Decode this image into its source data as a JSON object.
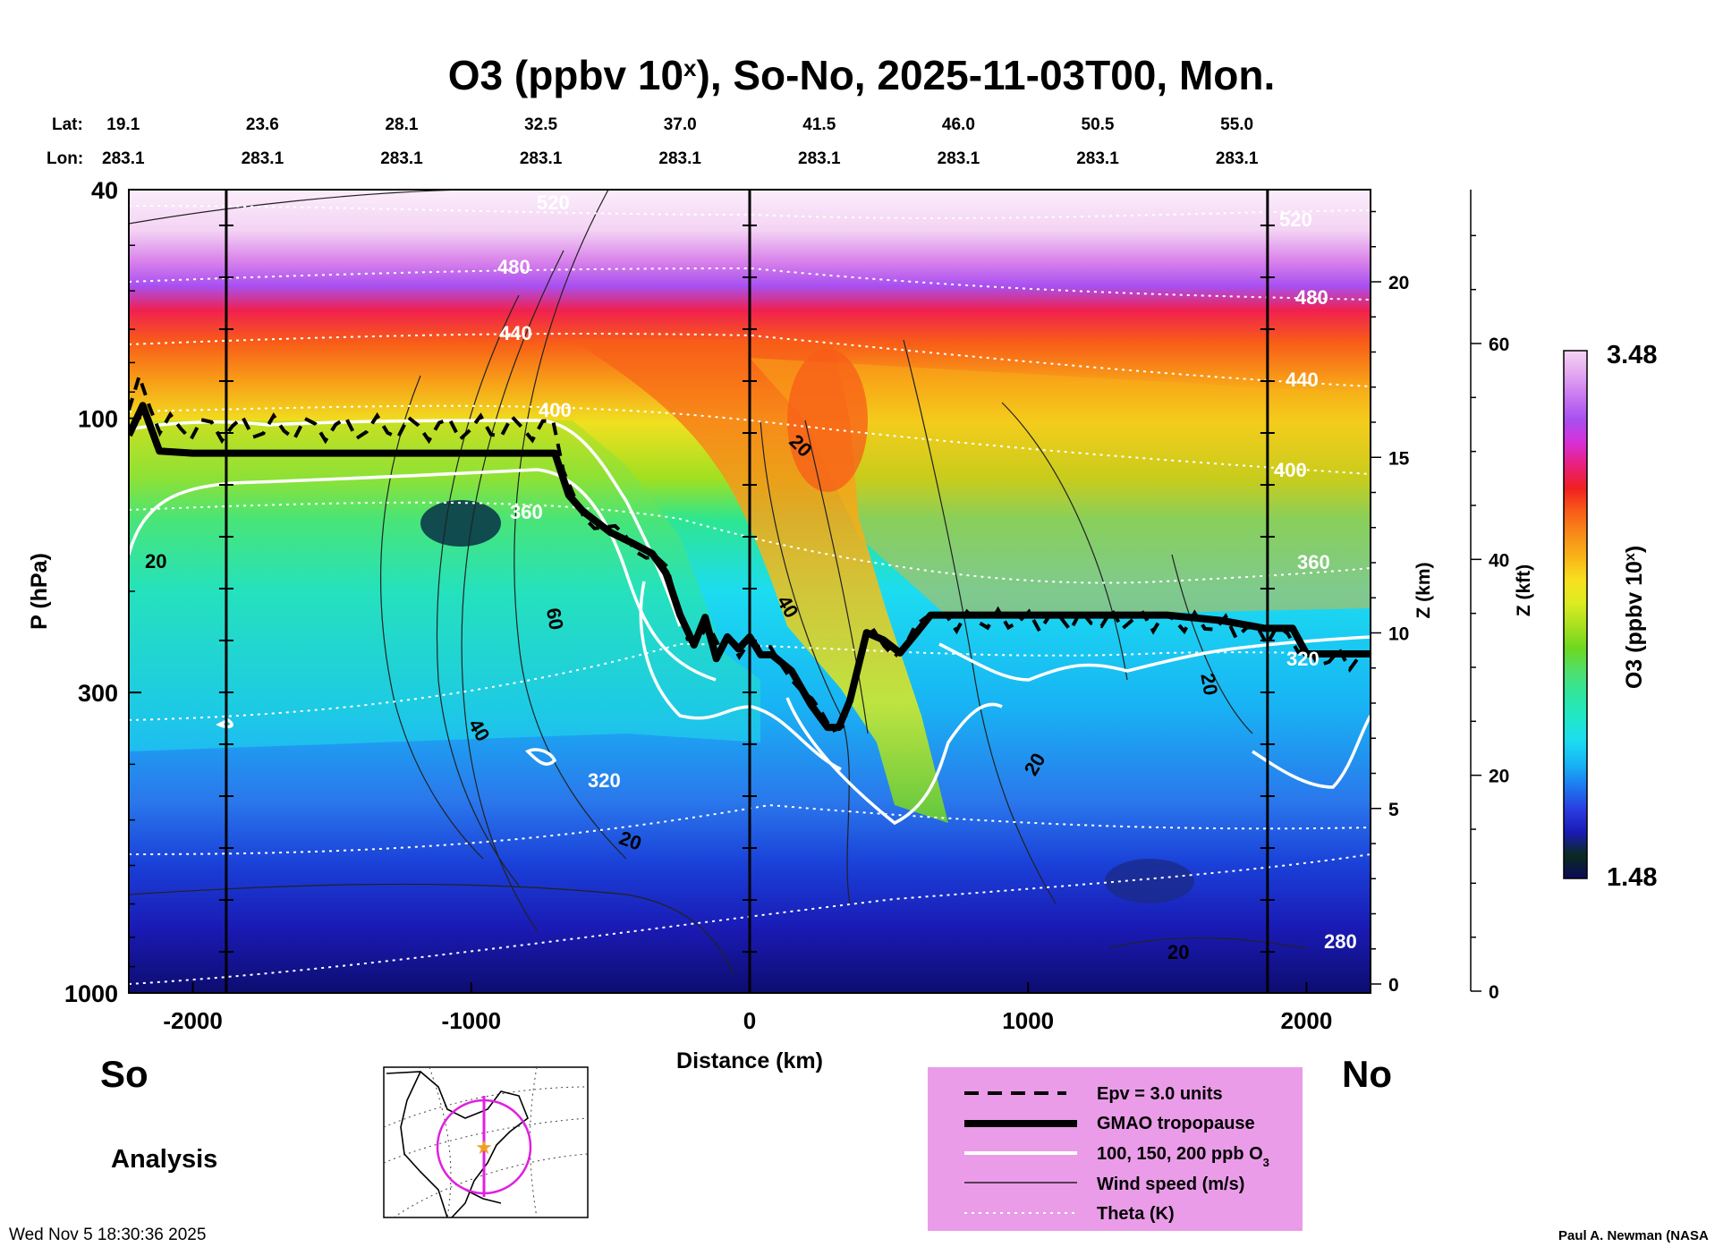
{
  "chart_data": {
    "type": "heatmap",
    "title_main": "O3 (ppbv 10",
    "title_sup": "x",
    "title_rest": "), So-No, 2025-11-03T00, Mon.",
    "lat_label": "Lat:",
    "lon_label": "Lon:",
    "columns": [
      {
        "lat": "19.1",
        "lon": "283.1",
        "km": -2250
      },
      {
        "lat": "23.6",
        "lon": "283.1",
        "km": -1750
      },
      {
        "lat": "28.1",
        "lon": "283.1",
        "km": -1250
      },
      {
        "lat": "32.5",
        "lon": "283.1",
        "km": -750
      },
      {
        "lat": "37.0",
        "lon": "283.1",
        "km": -250
      },
      {
        "lat": "41.5",
        "lon": "283.1",
        "km": 250
      },
      {
        "lat": "46.0",
        "lon": "283.1",
        "km": 750
      },
      {
        "lat": "50.5",
        "lon": "283.1",
        "km": 1250
      },
      {
        "lat": "55.0",
        "lon": "283.1",
        "km": 1750
      }
    ],
    "xlabel": "Distance (km)",
    "xlim": [
      -2230,
      2230
    ],
    "xticks": [
      -2000,
      -1000,
      0,
      1000,
      2000
    ],
    "xtick_labels": [
      "-2000",
      "-1000",
      "0",
      "1000",
      "2000"
    ],
    "ylabel": "P (hPa)",
    "ylim": [
      1000,
      40
    ],
    "yticks": [
      40,
      100,
      300,
      1000
    ],
    "ytick_labels": [
      "40",
      "100",
      "300",
      "1000"
    ],
    "z_km_label": "Z (km)",
    "z_km_ticks": [
      0,
      5,
      10,
      15,
      20
    ],
    "z_km_tick_labels": [
      "0",
      "5",
      "10",
      "15",
      "20"
    ],
    "z_kft_label": "Z (kft)",
    "z_kft_ticks": [
      0,
      20,
      40,
      60
    ],
    "z_kft_tick_labels": [
      "0",
      "20",
      "40",
      "60"
    ],
    "colorbar": {
      "label_main": "O3 (ppbv 10",
      "label_sup": "x",
      "label_end": ")",
      "min_label": "1.48",
      "max_label": "3.48",
      "min": 1.48,
      "max": 3.48,
      "colors": [
        "#0a0a5a",
        "#0b2a1e",
        "#1a1ab4",
        "#2a3ce0",
        "#1e78f0",
        "#18b4f4",
        "#1cdcf0",
        "#20e8c8",
        "#2ee6a0",
        "#4ee070",
        "#6cd820",
        "#a8e020",
        "#dcec20",
        "#f8e020",
        "#f8b418",
        "#f88c18",
        "#f85c18",
        "#f02020",
        "#e8207c",
        "#d830d8",
        "#a850f0",
        "#c878f0",
        "#e4a8f0",
        "#f4d4f4"
      ]
    },
    "theta_labels": [
      "520",
      "480",
      "440",
      "400",
      "360",
      "320",
      "280",
      "520",
      "480",
      "440",
      "400",
      "360",
      "320"
    ],
    "wind_labels": [
      "20",
      "60",
      "40",
      "20",
      "20",
      "40",
      "20",
      "20",
      "20"
    ],
    "tropopause_x": [
      -2230,
      -2180,
      -2120,
      -2000,
      -1500,
      -1000,
      -700,
      -650,
      -600,
      -500,
      -420,
      -350,
      -300,
      -250,
      -200,
      -160,
      -120,
      -80,
      -40,
      0,
      40,
      80,
      150,
      220,
      280,
      320,
      360,
      420,
      480,
      540,
      600,
      650,
      700,
      800,
      1000,
      1200,
      1500,
      1700,
      1850,
      1950,
      2000,
      2230
    ],
    "tropopause_p": [
      107,
      95,
      114,
      115,
      115,
      115,
      115,
      136,
      145,
      158,
      165,
      172,
      186,
      220,
      248,
      222,
      262,
      240,
      252,
      240,
      258,
      258,
      275,
      315,
      345,
      345,
      310,
      236,
      243,
      256,
      236,
      220,
      220,
      220,
      220,
      220,
      220,
      225,
      232,
      232,
      257,
      257
    ],
    "legend": {
      "epv": "Epv = 3.0 units",
      "tropopause": "GMAO tropopause",
      "ozone_main": "100, 150, 200 ppb O",
      "ozone_sub": "3",
      "wind": "Wind speed (m/s)",
      "theta": "Theta (K)"
    }
  },
  "labels": {
    "south": "So",
    "north": "No",
    "analysis": "Analysis",
    "timestamp": "Wed Nov  5 18:30:36 2025",
    "credit": "Paul A. Newman (NASA"
  }
}
